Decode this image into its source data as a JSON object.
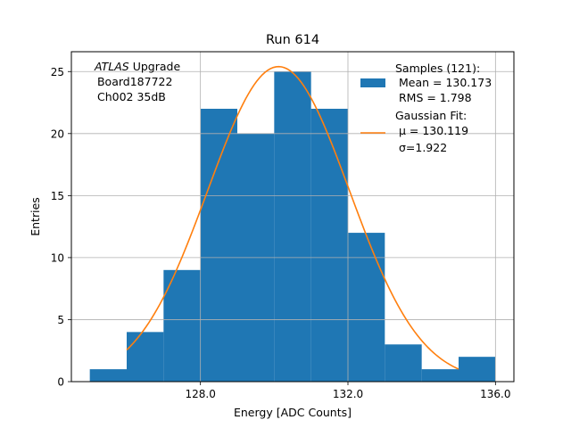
{
  "chart_data": {
    "type": "bar",
    "title": "Run 614",
    "xlabel": "Energy [ADC Counts]",
    "ylabel": "Entries",
    "xlim": [
      124.5,
      136.5
    ],
    "ylim": [
      0,
      26.6
    ],
    "grid": true,
    "xticks": [
      128.0,
      132.0,
      136.0
    ],
    "xtick_labels": [
      "128.0",
      "132.0",
      "136.0"
    ],
    "yticks": [
      0,
      5,
      10,
      15,
      20,
      25
    ],
    "ytick_labels": [
      "0",
      "5",
      "10",
      "15",
      "20",
      "25"
    ],
    "histogram": {
      "bin_edges": [
        125,
        126,
        127,
        128,
        129,
        130,
        131,
        132,
        133,
        134,
        135,
        136
      ],
      "counts": [
        1,
        4,
        9,
        22,
        20,
        25,
        22,
        12,
        3,
        1,
        2
      ],
      "color": "#1f77b4"
    },
    "fit": {
      "type": "gaussian",
      "amplitude": 25.4,
      "mu": 130.119,
      "sigma": 1.922,
      "x_range": [
        126,
        135
      ],
      "color": "#ff7f0e"
    },
    "annotation": {
      "line1_italic": "ATLAS",
      "line1_rest": " Upgrade",
      "line2": " Board187722",
      "line3": " Ch002 35dB"
    },
    "legend": {
      "position": "top-right",
      "samples_title": "Samples (121):",
      "samples_mean": " Mean = 130.173",
      "samples_rms": " RMS = 1.798",
      "fit_title": "Gaussian Fit:",
      "fit_mu": " μ = 130.119",
      "fit_sigma": " σ=1.922"
    }
  }
}
